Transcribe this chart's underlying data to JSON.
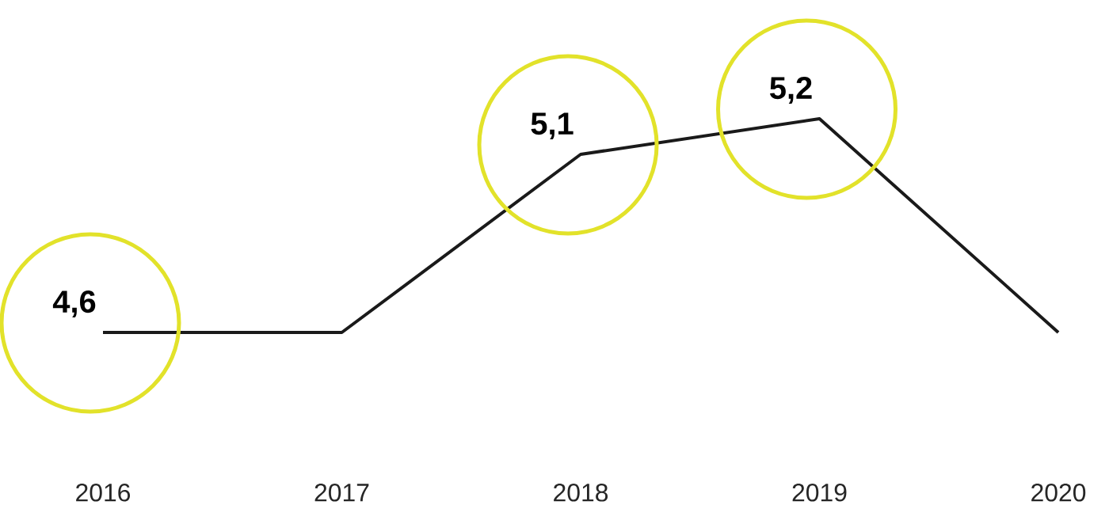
{
  "chart_data": {
    "type": "line",
    "categories": [
      "2016",
      "2017",
      "2018",
      "2019",
      "2020"
    ],
    "series": [
      {
        "color": "#1a1a1a",
        "values": [
          4.6,
          4.6,
          5.1,
          5.2,
          4.6
        ],
        "value_labels": [
          "4,6",
          null,
          "5,1",
          "5,2",
          null
        ]
      }
    ]
  }
}
